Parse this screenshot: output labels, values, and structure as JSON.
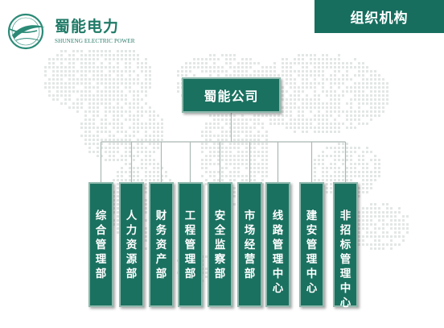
{
  "brand": {
    "name_cn": "蜀能电力",
    "name_en": "SHUNENG ELECTRIC POWER",
    "logo_icon": "shuneng-logo-icon"
  },
  "header": {
    "title": "组织机构"
  },
  "org": {
    "root": {
      "label": "蜀能公司"
    },
    "departments": [
      {
        "label": "综合管理部"
      },
      {
        "label": "人力资源部"
      },
      {
        "label": "财务资产部"
      },
      {
        "label": "工程管理部"
      },
      {
        "label": "安全监察部"
      },
      {
        "label": "市场经营部"
      },
      {
        "label": "线路管理中心"
      },
      {
        "label": "建安管理中心"
      },
      {
        "label": "非招标管理中心"
      }
    ]
  },
  "colors": {
    "primary_green": "#1b7160",
    "header_green": "#176e5f",
    "box_border": "#8fb9ad",
    "connector": "#aab8b3",
    "map_dots": "#e2e7e5"
  }
}
